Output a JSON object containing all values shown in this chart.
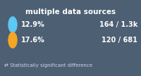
{
  "background_color": "#4d5f73",
  "title": "multiple data sources",
  "title_color": "#ffffff",
  "title_fontsize": 7.5,
  "row1_pct": "12.9%",
  "row1_count": "164 / 1.3k",
  "row1_color": "#5bc8f5",
  "row2_pct": "17.6%",
  "row2_count": "120 / 681",
  "row2_color": "#f5a623",
  "footer_text": "⇄ Statistically significant difference",
  "footer_color": "#c8d8e8",
  "text_color": "#ffffff",
  "fontsize_main": 7.0,
  "fontsize_footer": 5.0,
  "fig_width": 2.0,
  "fig_height": 1.08,
  "dpi": 100
}
